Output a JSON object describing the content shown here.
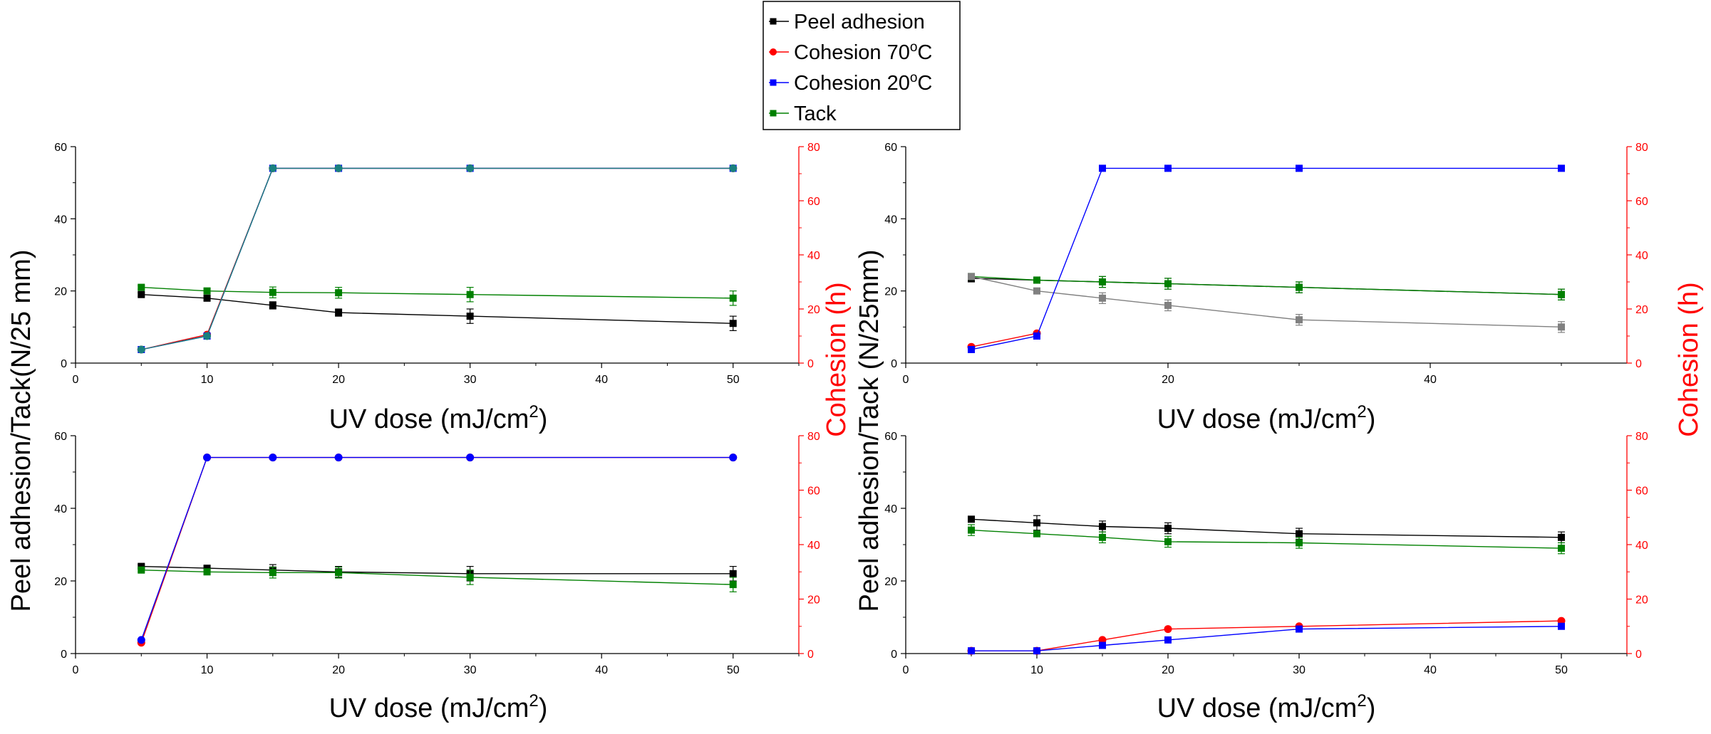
{
  "legend": {
    "items": [
      {
        "label": "Peel adhesion",
        "label_main": "Peel adhesion",
        "label_sup": "",
        "label_tail": "",
        "color": "#000000",
        "marker": "square"
      },
      {
        "label": "Cohesion 70ºC",
        "label_main": "Cohesion 70",
        "label_sup": "o",
        "label_tail": "C",
        "color": "#ff0000",
        "marker": "circle"
      },
      {
        "label": "Cohesion 20ºC",
        "label_main": "Cohesion 20",
        "label_sup": "o",
        "label_tail": "C",
        "color": "#0000ff",
        "marker": "square"
      },
      {
        "label": "Tack",
        "label_main": "Tack",
        "label_sup": "",
        "label_tail": "",
        "color": "#008000",
        "marker": "square"
      }
    ]
  },
  "shared_labels": {
    "xlabel": "UV dose (mJ/cm²)",
    "xlabel_main": "UV dose (mJ/cm",
    "xlabel_sup": "2",
    "xlabel_tail": ")",
    "ylabel_left_1": "Peel adhesion/Tack(N/25 mm)",
    "ylabel_left_2": "Peel adhesion/Tack (N/25mm)",
    "ylabel_right": "Cohesion (h)"
  },
  "chart_data": [
    {
      "type": "line",
      "xlim": [
        0,
        55
      ],
      "ylim": [
        0,
        60
      ],
      "y2lim": [
        0,
        80
      ],
      "xticks": [
        "0",
        "10",
        "20",
        "30",
        "40",
        "50"
      ],
      "yticks": [
        "0",
        "20",
        "40",
        "60"
      ],
      "y2ticks": [
        "0",
        "20",
        "40",
        "60",
        "80"
      ],
      "series": [
        {
          "name": "Peel adhesion",
          "axis": "left",
          "color": "#000000",
          "marker": "square",
          "x": [
            5,
            10,
            15,
            20,
            30,
            50
          ],
          "y": [
            19,
            18,
            16,
            14,
            13,
            11
          ],
          "err": [
            0.5,
            0.5,
            1,
            1,
            2,
            2
          ]
        },
        {
          "name": "Tack",
          "axis": "left",
          "color": "#008000",
          "marker": "square",
          "x": [
            5,
            10,
            15,
            20,
            30,
            50
          ],
          "y": [
            21,
            20,
            19.6,
            19.5,
            19,
            18
          ],
          "err": [
            0.5,
            0.5,
            1.5,
            1.5,
            2,
            2
          ]
        },
        {
          "name": "Cohesion 70ºC",
          "axis": "right",
          "color": "#ff0000",
          "marker": "circle",
          "x": [
            5,
            10,
            15,
            20,
            30,
            50
          ],
          "y": [
            5,
            10.5,
            72,
            72,
            72,
            72
          ]
        },
        {
          "name": "Cohesion 20ºC",
          "axis": "right",
          "color": "#0000ff",
          "marker": "square",
          "x": [
            5,
            10,
            15,
            20,
            30,
            50
          ],
          "y": [
            5,
            10,
            72,
            72,
            72,
            72
          ]
        },
        {
          "name": "Cohesion (overlap)",
          "axis": "right",
          "color": "#1a8080",
          "marker": "circle",
          "x": [
            5,
            10,
            15,
            20,
            30,
            50
          ],
          "y": [
            5,
            10,
            72,
            72,
            72,
            72
          ]
        }
      ]
    },
    {
      "type": "line",
      "xlim": [
        0,
        55
      ],
      "ylim": [
        0,
        60
      ],
      "y2lim": [
        0,
        80
      ],
      "xticks": [
        "0",
        "20",
        "40"
      ],
      "yticks": [
        "0",
        "20",
        "40",
        "60"
      ],
      "y2ticks": [
        "0",
        "20",
        "40",
        "60",
        "80"
      ],
      "series": [
        {
          "name": "Peel adhesion",
          "axis": "left",
          "color": "#000000",
          "marker": "square",
          "x": [
            5,
            10,
            15,
            20,
            30,
            50
          ],
          "y": [
            23.5,
            23,
            22.5,
            22,
            21,
            19
          ],
          "err": [
            1,
            0.5,
            1.5,
            1.5,
            1.5,
            1.5
          ]
        },
        {
          "name": "Tack",
          "axis": "left",
          "color": "#008000",
          "marker": "square",
          "x": [
            5,
            10,
            15,
            20,
            30,
            50
          ],
          "y": [
            24,
            23,
            22.5,
            22,
            21,
            19
          ],
          "err": [
            0.5,
            0.5,
            1.5,
            1.5,
            1.5,
            1.5
          ]
        },
        {
          "name": "Peel adhesion (grey)",
          "axis": "left",
          "color": "#808080",
          "marker": "square",
          "x": [
            5,
            10,
            15,
            20,
            30,
            50
          ],
          "y": [
            24,
            20,
            18,
            16,
            12,
            10
          ],
          "err": [
            0.5,
            0.5,
            1.5,
            1.5,
            1.5,
            1.5
          ]
        },
        {
          "name": "Cohesion 70ºC",
          "axis": "right",
          "color": "#ff0000",
          "marker": "circle",
          "x": [
            5,
            10
          ],
          "y": [
            6,
            11
          ]
        },
        {
          "name": "Cohesion 20ºC",
          "axis": "right",
          "color": "#0000ff",
          "marker": "square",
          "x": [
            5,
            10,
            15,
            20,
            30,
            50
          ],
          "y": [
            5,
            10,
            72,
            72,
            72,
            72
          ]
        }
      ]
    },
    {
      "type": "line",
      "xlim": [
        0,
        55
      ],
      "ylim": [
        0,
        60
      ],
      "y2lim": [
        0,
        80
      ],
      "xticks": [
        "0",
        "10",
        "20",
        "30",
        "40",
        "50"
      ],
      "yticks": [
        "0",
        "20",
        "40",
        "60"
      ],
      "y2ticks": [
        "0",
        "20",
        "40",
        "60",
        "80"
      ],
      "series": [
        {
          "name": "Peel adhesion",
          "axis": "left",
          "color": "#000000",
          "marker": "square",
          "x": [
            5,
            10,
            15,
            20,
            30,
            50
          ],
          "y": [
            24,
            23.5,
            23,
            22.5,
            22,
            22
          ],
          "err": [
            0.5,
            0.5,
            1.5,
            1.5,
            2,
            2
          ]
        },
        {
          "name": "Tack",
          "axis": "left",
          "color": "#008000",
          "marker": "square",
          "x": [
            5,
            10,
            15,
            20,
            30,
            50
          ],
          "y": [
            23,
            22.5,
            22.3,
            22.3,
            21,
            19
          ],
          "err": [
            0.5,
            0.5,
            1.5,
            1.5,
            2,
            2
          ]
        },
        {
          "name": "Cohesion 70ºC",
          "axis": "right",
          "color": "#ff0000",
          "marker": "circle",
          "x": [
            5,
            10,
            15,
            20,
            30,
            50
          ],
          "y": [
            4,
            72,
            72,
            72,
            72,
            72
          ]
        },
        {
          "name": "Cohesion 20ºC",
          "axis": "right",
          "color": "#0000ff",
          "marker": "circle",
          "x": [
            5,
            10,
            15,
            20,
            30,
            50
          ],
          "y": [
            5,
            72,
            72,
            72,
            72,
            72
          ]
        }
      ]
    },
    {
      "type": "line",
      "xlim": [
        0,
        55
      ],
      "ylim": [
        0,
        60
      ],
      "y2lim": [
        0,
        80
      ],
      "xticks": [
        "0",
        "10",
        "20",
        "30",
        "40",
        "50"
      ],
      "yticks": [
        "0",
        "20",
        "40",
        "60"
      ],
      "y2ticks": [
        "0",
        "20",
        "40",
        "60",
        "80"
      ],
      "series": [
        {
          "name": "Peel adhesion",
          "axis": "left",
          "color": "#000000",
          "marker": "square",
          "x": [
            5,
            10,
            15,
            20,
            30,
            50
          ],
          "y": [
            37,
            36,
            35,
            34.5,
            33,
            32
          ],
          "err": [
            0.5,
            2,
            1.5,
            1.5,
            1.5,
            1.5
          ]
        },
        {
          "name": "Tack",
          "axis": "left",
          "color": "#008000",
          "marker": "square",
          "x": [
            5,
            10,
            15,
            20,
            30,
            50
          ],
          "y": [
            34,
            33,
            32,
            30.8,
            30.5,
            29
          ],
          "err": [
            1.5,
            0.5,
            1.5,
            1.5,
            1.5,
            1.5
          ]
        },
        {
          "name": "Cohesion 70ºC",
          "axis": "right",
          "color": "#ff0000",
          "marker": "circle",
          "x": [
            5,
            10,
            15,
            20,
            30,
            50
          ],
          "y": [
            1,
            1,
            5,
            9,
            10,
            12
          ]
        },
        {
          "name": "Cohesion 20ºC",
          "axis": "right",
          "color": "#0000ff",
          "marker": "square",
          "x": [
            5,
            10,
            15,
            20,
            30,
            50
          ],
          "y": [
            1,
            1,
            3,
            5,
            9,
            10
          ]
        }
      ]
    }
  ]
}
